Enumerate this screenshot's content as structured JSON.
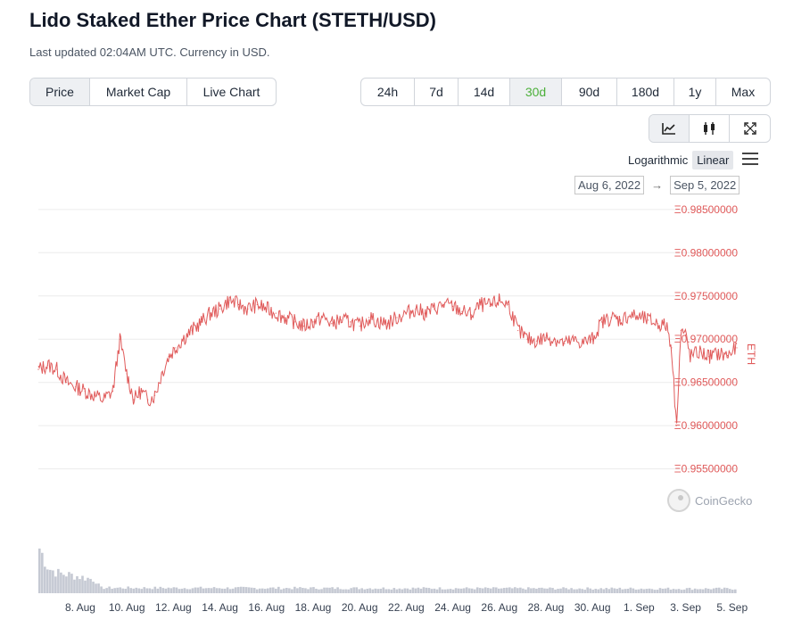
{
  "page": {
    "title": "Lido Staked Ether Price Chart (STETH/USD)",
    "subtitle": "Last updated 02:04AM UTC. Currency in USD."
  },
  "metric_tabs": [
    {
      "label": "Price",
      "active": true
    },
    {
      "label": "Market Cap",
      "active": false
    },
    {
      "label": "Live Chart",
      "active": false
    }
  ],
  "range_tabs": [
    {
      "label": "24h",
      "active": false
    },
    {
      "label": "7d",
      "active": false
    },
    {
      "label": "14d",
      "active": false
    },
    {
      "label": "30d",
      "active": true
    },
    {
      "label": "90d",
      "active": false
    },
    {
      "label": "180d",
      "active": false
    },
    {
      "label": "1y",
      "active": false
    },
    {
      "label": "Max",
      "active": false
    }
  ],
  "view_tabs": [
    {
      "icon": "line-chart-icon",
      "active": true
    },
    {
      "icon": "candlestick-icon",
      "active": false
    },
    {
      "icon": "fullscreen-icon",
      "active": false
    }
  ],
  "scale": {
    "log_label": "Logarithmic",
    "linear_label": "Linear",
    "active": "Linear"
  },
  "date_range": {
    "from": "Aug 6, 2022",
    "to": "Sep 5, 2022",
    "arrow": "→"
  },
  "watermark": {
    "text": "CoinGecko"
  },
  "colors": {
    "line": "#e05a5a",
    "axis_label": "#e05a5a",
    "volume": "#c5c9d3",
    "grid": "#ececec"
  },
  "chart_data": {
    "type": "line",
    "title": "Lido Staked Ether Price Chart (STETH/USD)",
    "ylabel": "ETH",
    "y_prefix": "Ξ",
    "ylim": [
      0.953,
      0.9855
    ],
    "y_ticks": [
      0.955,
      0.96,
      0.965,
      0.97,
      0.975,
      0.98,
      0.985
    ],
    "y_tick_labels": [
      "Ξ0.95500000",
      "Ξ0.96000000",
      "Ξ0.96500000",
      "Ξ0.97000000",
      "Ξ0.97500000",
      "Ξ0.98000000",
      "Ξ0.98500000"
    ],
    "x_range_days": [
      0,
      30
    ],
    "x_ticks": [
      {
        "day": 1.8,
        "label": "8. Aug"
      },
      {
        "day": 3.8,
        "label": "10. Aug"
      },
      {
        "day": 5.8,
        "label": "12. Aug"
      },
      {
        "day": 7.8,
        "label": "14. Aug"
      },
      {
        "day": 9.8,
        "label": "16. Aug"
      },
      {
        "day": 11.8,
        "label": "18. Aug"
      },
      {
        "day": 13.8,
        "label": "20. Aug"
      },
      {
        "day": 15.8,
        "label": "22. Aug"
      },
      {
        "day": 17.8,
        "label": "24. Aug"
      },
      {
        "day": 19.8,
        "label": "26. Aug"
      },
      {
        "day": 21.8,
        "label": "28. Aug"
      },
      {
        "day": 23.8,
        "label": "30. Aug"
      },
      {
        "day": 25.8,
        "label": "1. Sep"
      },
      {
        "day": 27.8,
        "label": "3. Sep"
      },
      {
        "day": 29.8,
        "label": "5. Sep"
      }
    ],
    "series": [
      {
        "name": "Price (ETH)",
        "x": [
          0,
          0.4,
          0.8,
          1.2,
          1.6,
          2.0,
          2.4,
          2.8,
          3.2,
          3.5,
          3.8,
          4.1,
          4.4,
          4.7,
          5.0,
          5.3,
          5.6,
          5.9,
          6.2,
          6.6,
          7.0,
          7.4,
          7.8,
          8.2,
          8.6,
          9.0,
          9.4,
          9.8,
          10.2,
          10.6,
          11.0,
          11.4,
          11.8,
          12.2,
          12.6,
          13.0,
          13.4,
          13.8,
          14.2,
          14.6,
          15.0,
          15.4,
          15.8,
          16.2,
          16.6,
          17.0,
          17.4,
          17.8,
          18.2,
          18.6,
          19.0,
          19.4,
          19.8,
          20.2,
          20.6,
          21.0,
          21.4,
          21.8,
          22.2,
          22.6,
          23.0,
          23.4,
          23.8,
          24.2,
          24.6,
          25.0,
          25.4,
          25.8,
          26.2,
          26.6,
          27.0,
          27.2,
          27.4,
          27.6,
          27.8,
          28.0,
          28.4,
          28.8,
          29.2,
          29.6,
          30.0
        ],
        "values": [
          0.9665,
          0.967,
          0.9665,
          0.965,
          0.9645,
          0.964,
          0.9635,
          0.963,
          0.964,
          0.97,
          0.966,
          0.963,
          0.964,
          0.963,
          0.9635,
          0.966,
          0.968,
          0.969,
          0.97,
          0.971,
          0.972,
          0.973,
          0.9735,
          0.9745,
          0.974,
          0.9735,
          0.974,
          0.9735,
          0.973,
          0.9725,
          0.972,
          0.9715,
          0.972,
          0.9725,
          0.9718,
          0.9722,
          0.972,
          0.9715,
          0.9725,
          0.972,
          0.9718,
          0.9725,
          0.973,
          0.9735,
          0.973,
          0.9735,
          0.974,
          0.9738,
          0.9732,
          0.9728,
          0.974,
          0.9738,
          0.9745,
          0.974,
          0.971,
          0.97,
          0.9698,
          0.9702,
          0.97,
          0.9695,
          0.9698,
          0.9696,
          0.97,
          0.972,
          0.9725,
          0.9722,
          0.9728,
          0.9725,
          0.9722,
          0.9718,
          0.9715,
          0.969,
          0.96,
          0.971,
          0.9705,
          0.968,
          0.9685,
          0.968,
          0.9683,
          0.9681,
          0.969
        ]
      }
    ],
    "volume_bars": {
      "name": "Volume",
      "note": "relative volume, unlabeled",
      "x_range_days": [
        0,
        30
      ],
      "profile": [
        [
          0,
          1.0
        ],
        [
          0.4,
          0.55
        ],
        [
          0.8,
          0.45
        ],
        [
          1.4,
          0.4
        ],
        [
          2.4,
          0.3
        ],
        [
          2.6,
          0.12
        ],
        [
          30.0,
          0.1
        ]
      ]
    }
  }
}
